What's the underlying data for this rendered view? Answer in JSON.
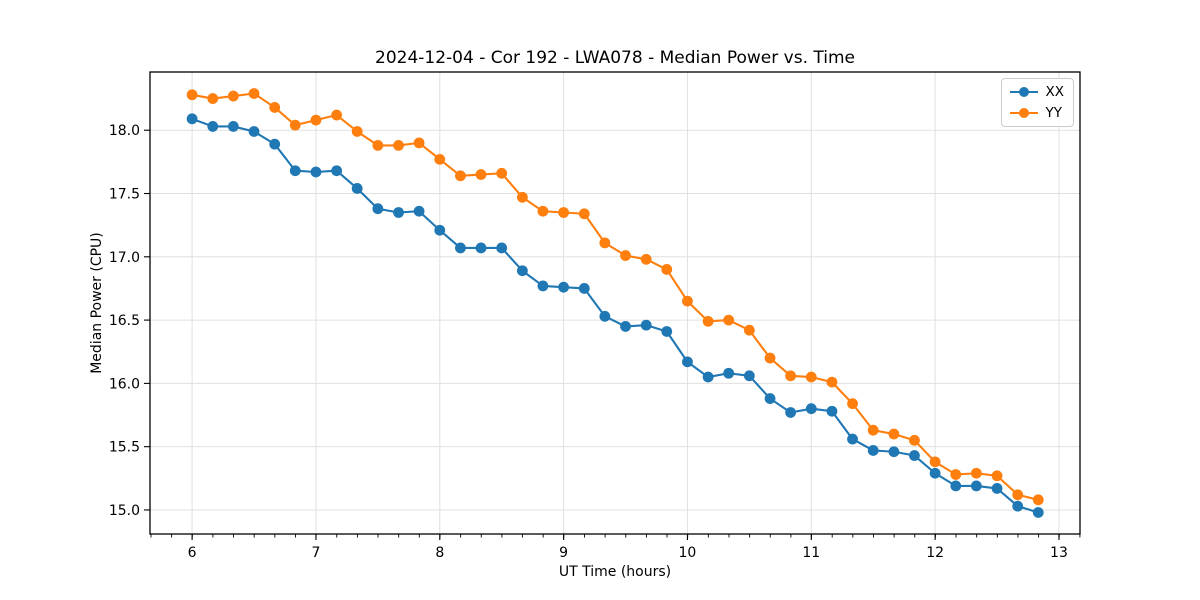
{
  "figure": {
    "background": "#ffffff"
  },
  "chart_data": {
    "type": "line",
    "title": "2024-12-04 - Cor 192 - LWA078 - Median Power vs. Time",
    "xlabel": "UT Time (hours)",
    "ylabel": "Median Power (CPU)",
    "xlim": [
      5.66,
      13.17
    ],
    "ylim": [
      14.81,
      18.46
    ],
    "xticks": [
      6,
      7,
      8,
      9,
      10,
      11,
      12,
      13
    ],
    "xtick_labels": [
      "6",
      "7",
      "8",
      "9",
      "10",
      "11",
      "12",
      "13"
    ],
    "yticks": [
      15.0,
      15.5,
      16.0,
      16.5,
      17.0,
      17.5,
      18.0
    ],
    "ytick_labels": [
      "15.0",
      "15.5",
      "16.0",
      "16.5",
      "17.0",
      "17.5",
      "18.0"
    ],
    "grid": true,
    "minor_tick_step_x": 0.1667,
    "legend": {
      "position": "upper right"
    },
    "x": [
      6.0,
      6.167,
      6.333,
      6.5,
      6.667,
      6.833,
      7.0,
      7.167,
      7.333,
      7.5,
      7.667,
      7.833,
      8.0,
      8.167,
      8.333,
      8.5,
      8.667,
      8.833,
      9.0,
      9.167,
      9.333,
      9.5,
      9.667,
      9.833,
      10.0,
      10.167,
      10.333,
      10.5,
      10.667,
      10.833,
      11.0,
      11.167,
      11.333,
      11.5,
      11.667,
      11.833,
      12.0,
      12.167,
      12.333,
      12.5,
      12.667,
      12.833
    ],
    "series": [
      {
        "name": "XX",
        "color": "#1f77b4",
        "values": [
          18.09,
          18.03,
          18.03,
          17.99,
          17.89,
          17.68,
          17.67,
          17.68,
          17.54,
          17.38,
          17.35,
          17.36,
          17.21,
          17.07,
          17.07,
          17.07,
          16.89,
          16.77,
          16.76,
          16.75,
          16.53,
          16.45,
          16.46,
          16.41,
          16.17,
          16.05,
          16.08,
          16.06,
          15.88,
          15.77,
          15.8,
          15.78,
          15.56,
          15.47,
          15.46,
          15.43,
          15.29,
          15.19,
          15.19,
          15.17,
          15.03,
          14.98
        ]
      },
      {
        "name": "YY",
        "color": "#ff7f0e",
        "values": [
          18.28,
          18.25,
          18.27,
          18.29,
          18.18,
          18.04,
          18.08,
          18.12,
          17.99,
          17.88,
          17.88,
          17.9,
          17.77,
          17.64,
          17.65,
          17.66,
          17.47,
          17.36,
          17.35,
          17.34,
          17.11,
          17.01,
          16.98,
          16.9,
          16.65,
          16.49,
          16.5,
          16.42,
          16.2,
          16.06,
          16.05,
          16.01,
          15.84,
          15.63,
          15.6,
          15.55,
          15.38,
          15.28,
          15.29,
          15.27,
          15.12,
          15.08
        ]
      }
    ]
  }
}
